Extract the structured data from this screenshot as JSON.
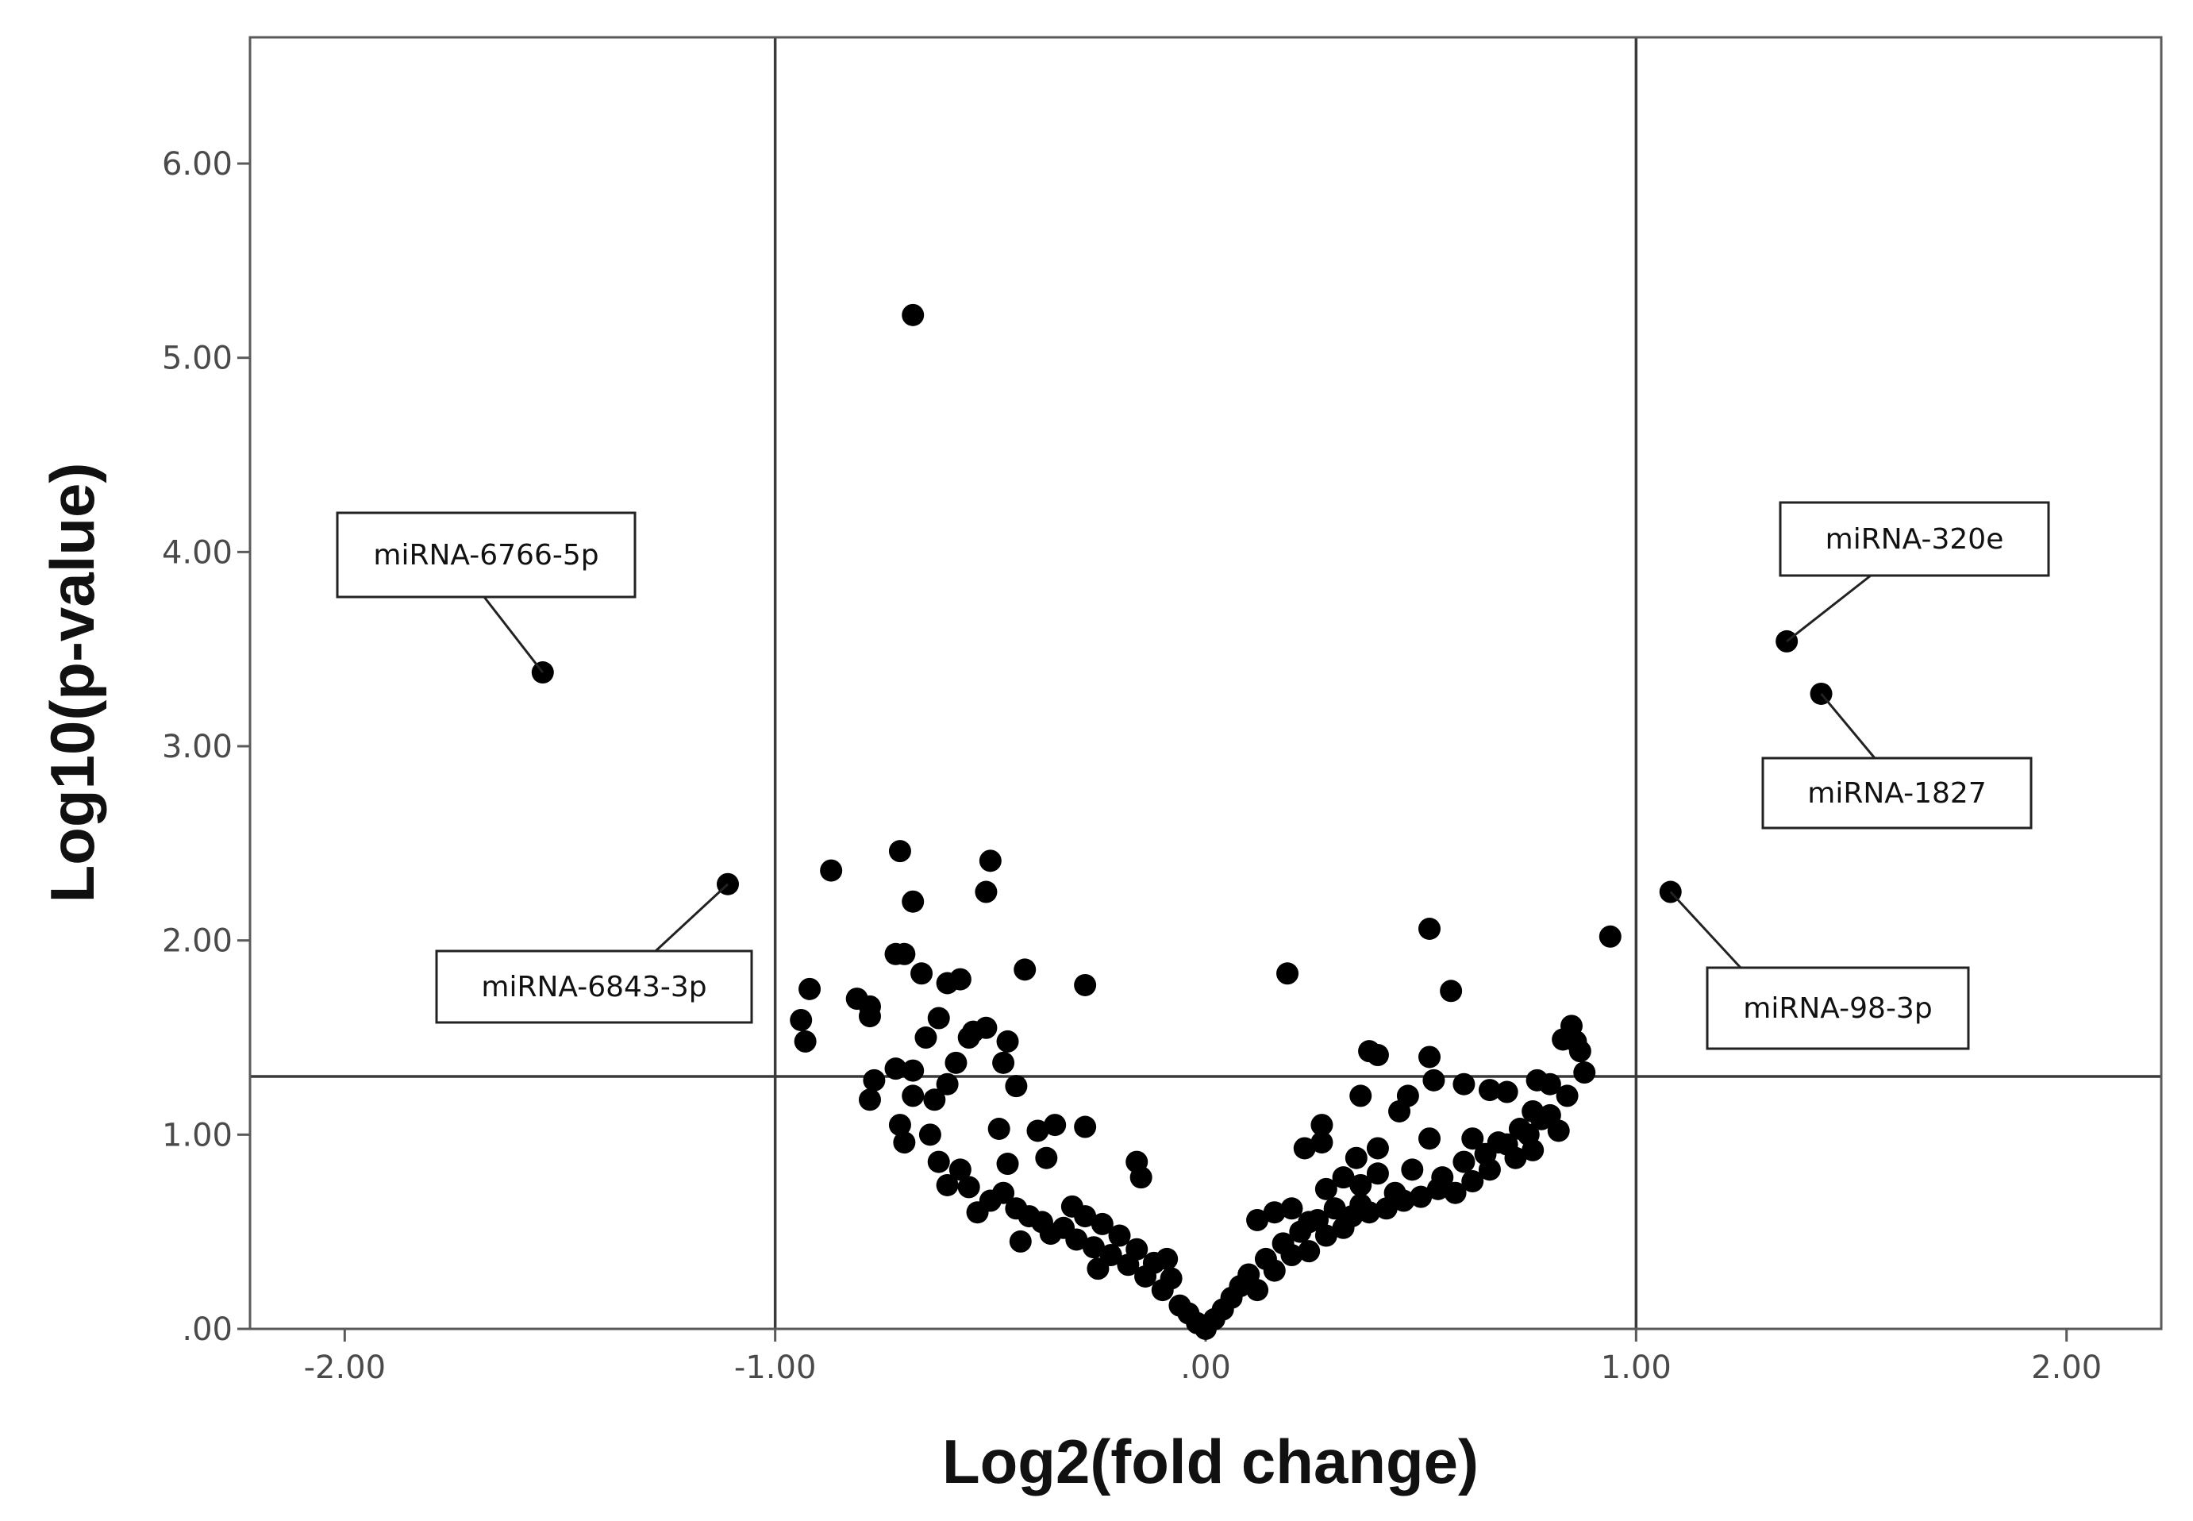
{
  "chart_data": {
    "type": "scatter",
    "title": "",
    "xlabel": "Log2(fold change)",
    "ylabel": "Log10(p-value)",
    "xlim": [
      -2.22,
      2.22
    ],
    "ylim": [
      0,
      6.65
    ],
    "x_ticks": [
      -2,
      -1,
      0,
      1,
      2
    ],
    "x_tick_labels": [
      "-2.00",
      "-1.00",
      ".00",
      "1.00",
      "2.00"
    ],
    "y_ticks": [
      0,
      1,
      2,
      3,
      4,
      5,
      6
    ],
    "y_tick_labels": [
      ".00",
      "1.00",
      "2.00",
      "3.00",
      "4.00",
      "5.00",
      "6.00"
    ],
    "grid": false,
    "legend": "none",
    "reference_lines": {
      "vertical": [
        -1,
        1
      ],
      "horizontal": [
        1.3
      ]
    },
    "point_color": "#000000",
    "labeled_points": [
      {
        "label": "miRNA-6766-5p",
        "x": -1.54,
        "y": 3.38
      },
      {
        "label": "miRNA-6843-3p",
        "x": -1.11,
        "y": 2.29
      },
      {
        "label": "miRNA-320e",
        "x": 1.35,
        "y": 3.54
      },
      {
        "label": "miRNA-1827",
        "x": 1.43,
        "y": 3.27
      },
      {
        "label": "miRNA-98-3p",
        "x": 1.08,
        "y": 2.25
      }
    ],
    "points": [
      [
        -0.68,
        5.22
      ],
      [
        -0.71,
        2.46
      ],
      [
        -0.5,
        2.41
      ],
      [
        -0.87,
        2.36
      ],
      [
        -0.51,
        2.25
      ],
      [
        -0.68,
        2.2
      ],
      [
        -0.92,
        1.75
      ],
      [
        -0.72,
        1.93
      ],
      [
        -0.7,
        1.93
      ],
      [
        -0.66,
        1.83
      ],
      [
        -0.57,
        1.8
      ],
      [
        -0.42,
        1.85
      ],
      [
        -0.28,
        1.77
      ],
      [
        -0.6,
        1.78
      ],
      [
        -0.81,
        1.7
      ],
      [
        -0.78,
        1.66
      ],
      [
        -0.78,
        1.61
      ],
      [
        -0.94,
        1.59
      ],
      [
        -0.93,
        1.48
      ],
      [
        -0.62,
        1.6
      ],
      [
        -0.54,
        1.53
      ],
      [
        -0.51,
        1.55
      ],
      [
        -0.65,
        1.5
      ],
      [
        -0.55,
        1.5
      ],
      [
        -0.46,
        1.48
      ],
      [
        -0.58,
        1.37
      ],
      [
        -0.72,
        1.34
      ],
      [
        -0.68,
        1.33
      ],
      [
        -0.47,
        1.37
      ],
      [
        -0.44,
        1.25
      ],
      [
        -0.77,
        1.28
      ],
      [
        -0.78,
        1.18
      ],
      [
        -0.68,
        1.2
      ],
      [
        -0.63,
        1.18
      ],
      [
        -0.6,
        1.26
      ],
      [
        -0.35,
        1.05
      ],
      [
        -0.28,
        1.04
      ],
      [
        -0.39,
        1.02
      ],
      [
        -0.48,
        1.03
      ],
      [
        -0.71,
        1.05
      ],
      [
        -0.7,
        0.96
      ],
      [
        -0.64,
        1.0
      ],
      [
        -0.16,
        0.86
      ],
      [
        -0.15,
        0.78
      ],
      [
        -0.37,
        0.88
      ],
      [
        -0.46,
        0.85
      ],
      [
        -0.57,
        0.82
      ],
      [
        -0.62,
        0.86
      ],
      [
        -0.6,
        0.74
      ],
      [
        -0.55,
        0.73
      ],
      [
        -0.5,
        0.66
      ],
      [
        -0.47,
        0.7
      ],
      [
        -0.44,
        0.62
      ],
      [
        -0.41,
        0.58
      ],
      [
        -0.38,
        0.55
      ],
      [
        -0.36,
        0.49
      ],
      [
        -0.33,
        0.52
      ],
      [
        -0.3,
        0.46
      ],
      [
        -0.28,
        0.58
      ],
      [
        -0.26,
        0.42
      ],
      [
        -0.24,
        0.54
      ],
      [
        -0.22,
        0.38
      ],
      [
        -0.2,
        0.48
      ],
      [
        -0.18,
        0.33
      ],
      [
        -0.16,
        0.41
      ],
      [
        -0.14,
        0.27
      ],
      [
        -0.12,
        0.34
      ],
      [
        -0.1,
        0.2
      ],
      [
        -0.08,
        0.26
      ],
      [
        -0.06,
        0.12
      ],
      [
        -0.04,
        0.08
      ],
      [
        -0.02,
        0.03
      ],
      [
        0.0,
        0.0
      ],
      [
        -0.09,
        0.36
      ],
      [
        -0.25,
        0.31
      ],
      [
        -0.31,
        0.63
      ],
      [
        -0.43,
        0.45
      ],
      [
        -0.53,
        0.6
      ],
      [
        0.94,
        2.02
      ],
      [
        0.52,
        2.06
      ],
      [
        0.19,
        1.83
      ],
      [
        0.57,
        1.74
      ],
      [
        0.85,
        1.56
      ],
      [
        0.86,
        1.48
      ],
      [
        0.87,
        1.43
      ],
      [
        0.83,
        1.49
      ],
      [
        0.52,
        1.4
      ],
      [
        0.38,
        1.43
      ],
      [
        0.4,
        1.41
      ],
      [
        0.53,
        1.28
      ],
      [
        0.6,
        1.26
      ],
      [
        0.66,
        1.23
      ],
      [
        0.7,
        1.22
      ],
      [
        0.77,
        1.28
      ],
      [
        0.8,
        1.26
      ],
      [
        0.36,
        1.2
      ],
      [
        0.47,
        1.2
      ],
      [
        0.45,
        1.12
      ],
      [
        0.76,
        1.12
      ],
      [
        0.27,
        1.05
      ],
      [
        0.27,
        0.96
      ],
      [
        0.35,
        0.88
      ],
      [
        0.4,
        0.93
      ],
      [
        0.52,
        0.98
      ],
      [
        0.23,
        0.93
      ],
      [
        0.62,
        0.98
      ],
      [
        0.68,
        0.96
      ],
      [
        0.73,
        1.03
      ],
      [
        0.78,
        1.08
      ],
      [
        0.12,
        0.56
      ],
      [
        0.16,
        0.6
      ],
      [
        0.2,
        0.62
      ],
      [
        0.24,
        0.55
      ],
      [
        0.28,
        0.72
      ],
      [
        0.32,
        0.78
      ],
      [
        0.36,
        0.74
      ],
      [
        0.4,
        0.8
      ],
      [
        0.44,
        0.7
      ],
      [
        0.48,
        0.82
      ],
      [
        0.55,
        0.78
      ],
      [
        0.6,
        0.86
      ],
      [
        0.65,
        0.9
      ],
      [
        0.7,
        0.95
      ],
      [
        0.75,
        1.0
      ],
      [
        0.8,
        1.1
      ],
      [
        0.84,
        1.2
      ],
      [
        0.88,
        1.32
      ],
      [
        0.02,
        0.05
      ],
      [
        0.04,
        0.1
      ],
      [
        0.06,
        0.16
      ],
      [
        0.08,
        0.22
      ],
      [
        0.1,
        0.28
      ],
      [
        0.12,
        0.2
      ],
      [
        0.14,
        0.36
      ],
      [
        0.16,
        0.3
      ],
      [
        0.18,
        0.44
      ],
      [
        0.2,
        0.38
      ],
      [
        0.22,
        0.5
      ],
      [
        0.24,
        0.4
      ],
      [
        0.26,
        0.56
      ],
      [
        0.28,
        0.48
      ],
      [
        0.3,
        0.62
      ],
      [
        0.32,
        0.52
      ],
      [
        0.34,
        0.58
      ],
      [
        0.36,
        0.64
      ],
      [
        0.38,
        0.6
      ],
      [
        0.42,
        0.62
      ],
      [
        0.46,
        0.66
      ],
      [
        0.5,
        0.68
      ],
      [
        0.54,
        0.72
      ],
      [
        0.58,
        0.7
      ],
      [
        0.62,
        0.76
      ],
      [
        0.66,
        0.82
      ],
      [
        0.72,
        0.88
      ],
      [
        0.76,
        0.92
      ],
      [
        0.82,
        1.02
      ]
    ]
  }
}
